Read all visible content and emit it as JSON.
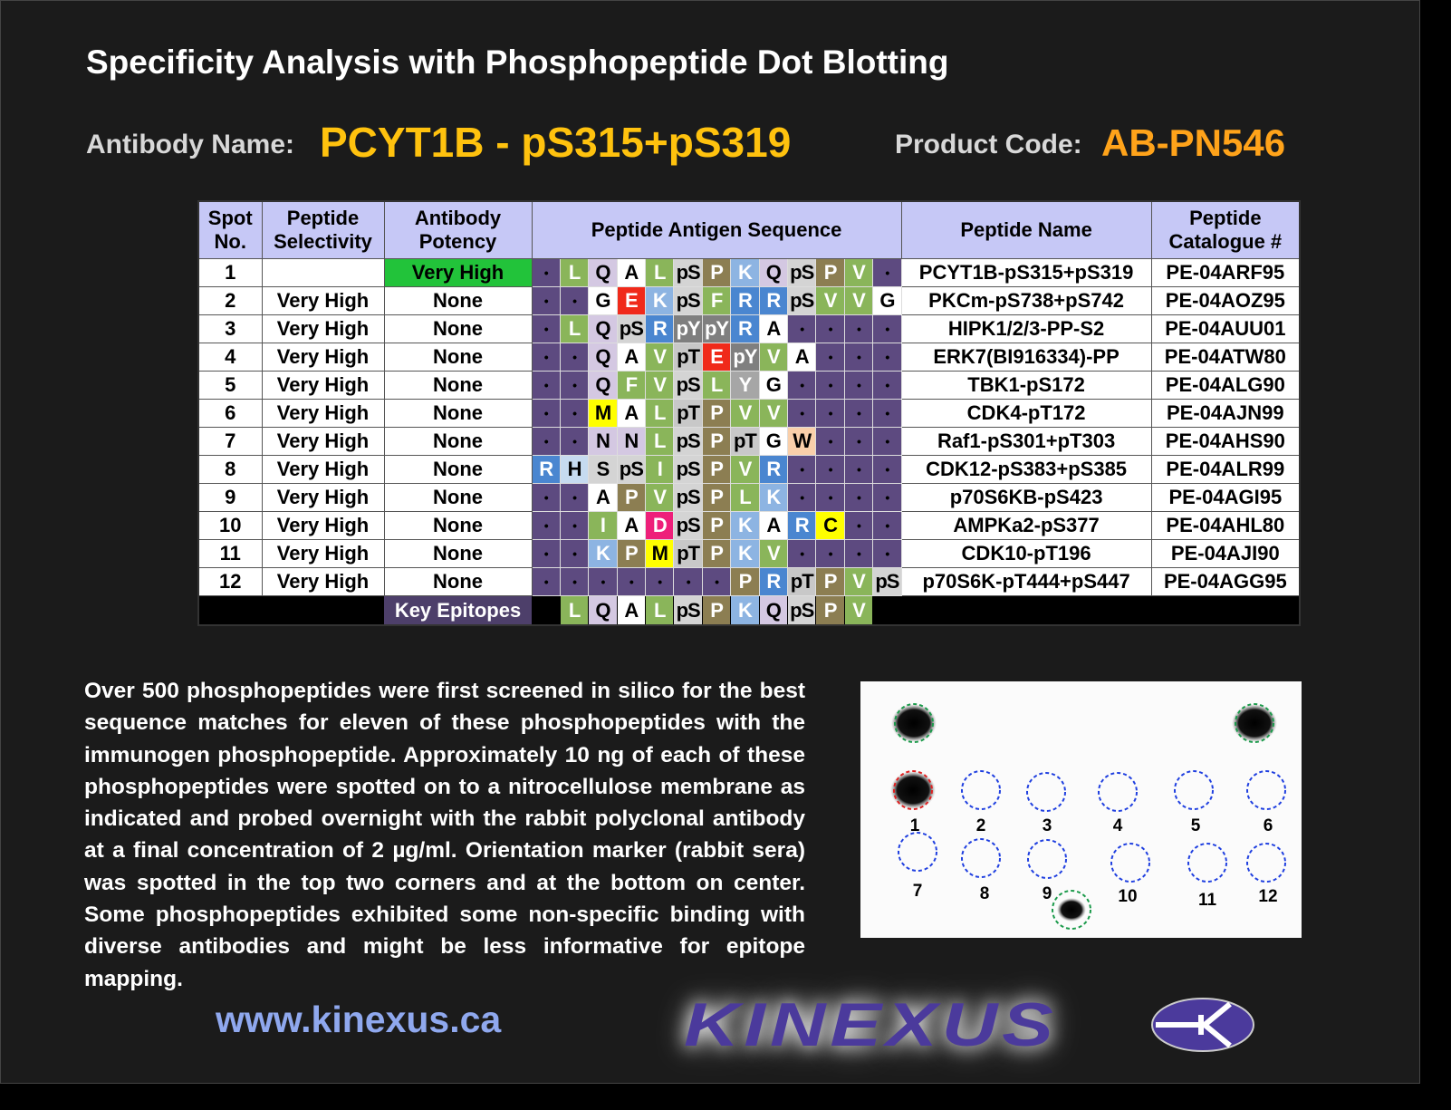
{
  "title": "Specificity Analysis with Phosphopeptide Dot Blotting",
  "antibody_label": "Antibody Name:",
  "antibody_name": "PCYT1B - pS315+pS319",
  "product_label": "Product Code:",
  "product_code": "AB-PN546",
  "table": {
    "headers": [
      "Spot No.",
      "Peptide Selectivity",
      "Antibody Potency",
      "Peptide Antigen Sequence",
      "Peptide Name",
      "Peptide Catalogue #"
    ],
    "rows": [
      {
        "spot": "1",
        "selectivity": "",
        "potency": "Very High",
        "seq": [
          "•",
          "L",
          "Q",
          "A",
          "L",
          "pS",
          "P",
          "K",
          "Q",
          "pS",
          "P",
          "V",
          "•"
        ],
        "name": "PCYT1B-pS315+pS319",
        "cat": "PE-04ARF95"
      },
      {
        "spot": "2",
        "selectivity": "Very High",
        "potency": "None",
        "seq": [
          "•",
          "•",
          "G",
          "E",
          "K",
          "pS",
          "F",
          "R",
          "R",
          "pS",
          "V",
          "V",
          "G"
        ],
        "name": "PKCm-pS738+pS742",
        "cat": "PE-04AOZ95"
      },
      {
        "spot": "3",
        "selectivity": "Very High",
        "potency": "None",
        "seq": [
          "•",
          "L",
          "Q",
          "pS",
          "R",
          "pY",
          "pY",
          "R",
          "A",
          "•",
          "•",
          "•",
          "•"
        ],
        "name": "HIPK1/2/3-PP-S2",
        "cat": "PE-04AUU01"
      },
      {
        "spot": "4",
        "selectivity": "Very High",
        "potency": "None",
        "seq": [
          "•",
          "•",
          "Q",
          "A",
          "V",
          "pT",
          "E",
          "pY",
          "V",
          "A",
          "•",
          "•",
          "•"
        ],
        "name": "ERK7(BI916334)-PP",
        "cat": "PE-04ATW80"
      },
      {
        "spot": "5",
        "selectivity": "Very High",
        "potency": "None",
        "seq": [
          "•",
          "•",
          "Q",
          "F",
          "V",
          "pS",
          "L",
          "Y",
          "G",
          "•",
          "•",
          "•",
          "•"
        ],
        "name": "TBK1-pS172",
        "cat": "PE-04ALG90"
      },
      {
        "spot": "6",
        "selectivity": "Very High",
        "potency": "None",
        "seq": [
          "•",
          "•",
          "M",
          "A",
          "L",
          "pT",
          "P",
          "V",
          "V",
          "•",
          "•",
          "•",
          "•"
        ],
        "name": "CDK4-pT172",
        "cat": "PE-04AJN99"
      },
      {
        "spot": "7",
        "selectivity": "Very High",
        "potency": "None",
        "seq": [
          "•",
          "•",
          "N",
          "N",
          "L",
          "pS",
          "P",
          "pT",
          "G",
          "W",
          "•",
          "•",
          "•"
        ],
        "name": "Raf1-pS301+pT303",
        "cat": "PE-04AHS90"
      },
      {
        "spot": "8",
        "selectivity": "Very High",
        "potency": "None",
        "seq": [
          "R",
          "H",
          "S",
          "pS",
          "I",
          "pS",
          "P",
          "V",
          "R",
          "•",
          "•",
          "•",
          "•"
        ],
        "name": "CDK12-pS383+pS385",
        "cat": "PE-04ALR99"
      },
      {
        "spot": "9",
        "selectivity": "Very High",
        "potency": "None",
        "seq": [
          "•",
          "•",
          "A",
          "P",
          "V",
          "pS",
          "P",
          "L",
          "K",
          "•",
          "•",
          "•",
          "•"
        ],
        "name": "p70S6KB-pS423",
        "cat": "PE-04AGI95"
      },
      {
        "spot": "10",
        "selectivity": "Very High",
        "potency": "None",
        "seq": [
          "•",
          "•",
          "I",
          "A",
          "D",
          "pS",
          "P",
          "K",
          "A",
          "R",
          "C",
          "•",
          "•"
        ],
        "name": "AMPKa2-pS377",
        "cat": "PE-04AHL80"
      },
      {
        "spot": "11",
        "selectivity": "Very High",
        "potency": "None",
        "seq": [
          "•",
          "•",
          "K",
          "P",
          "M",
          "pT",
          "P",
          "K",
          "V",
          "•",
          "•",
          "•",
          "•"
        ],
        "name": "CDK10-pT196",
        "cat": "PE-04AJI90"
      },
      {
        "spot": "12",
        "selectivity": "Very High",
        "potency": "None",
        "seq": [
          "•",
          "•",
          "•",
          "•",
          "•",
          "•",
          "•",
          "P",
          "R",
          "pT",
          "P",
          "V",
          "pS"
        ],
        "name": "p70S6K-pT444+pS447",
        "cat": "PE-04AGG95"
      }
    ],
    "key_label": "Key Epitopes",
    "key_seq": [
      "",
      "L",
      "Q",
      "A",
      "L",
      "pS",
      "P",
      "K",
      "Q",
      "pS",
      "P",
      "V",
      ""
    ]
  },
  "residue_colors": {
    "•": [
      "#5d4a80",
      "#000"
    ],
    "L": [
      "#8ab55a",
      "#fff"
    ],
    "V": [
      "#8ab55a",
      "#fff"
    ],
    "I": [
      "#8ab55a",
      "#fff"
    ],
    "F": [
      "#8ab55a",
      "#fff"
    ],
    "Q": [
      "#d4c8e2",
      "#000"
    ],
    "N": [
      "#d4c8e2",
      "#000"
    ],
    "A": [
      "#ffffff",
      "#000"
    ],
    "G": [
      "#ffffff",
      "#000"
    ],
    "pS": [
      "#d4d4d4",
      "#000"
    ],
    "pT": [
      "#c8c8c8",
      "#000"
    ],
    "S": [
      "#d4d4d4",
      "#000"
    ],
    "P": [
      "#8c7e52",
      "#fff"
    ],
    "K": [
      "#8db4e2",
      "#fff"
    ],
    "R": [
      "#4a86d0",
      "#fff"
    ],
    "H": [
      "#c6dbf0",
      "#000"
    ],
    "E": [
      "#f02a1a",
      "#fff"
    ],
    "D": [
      "#ee1f7a",
      "#fff"
    ],
    "pY": [
      "#7f7f7f",
      "#fff"
    ],
    "Y": [
      "#a6a6a6",
      "#fff"
    ],
    "M": [
      "#ffff00",
      "#000"
    ],
    "C": [
      "#ffff00",
      "#000"
    ],
    "W": [
      "#f9cfaa",
      "#000"
    ],
    "": [
      "#000000",
      "#000"
    ]
  },
  "description": "Over 500 phosphopeptides were first screened in silico for the best sequence matches for eleven of these phosphopeptides with the immunogen phosphopeptide.  Approximately 10 ng of each of these phosphopeptides were spotted on to a nitrocellulose membrane as indicated and probed overnight with the rabbit polyclonal antibody at a final concentration of 2 µg/ml. Orientation marker (rabbit sera) was spotted in the top two corners and at the bottom on center. Some phosphopeptides exhibited some non-specific binding with diverse antibodies and might be less informative for epitope mapping.",
  "blot": {
    "spot_labels": [
      "1",
      "2",
      "3",
      "4",
      "5",
      "6",
      "7",
      "8",
      "9",
      "10",
      "11",
      "12"
    ]
  },
  "url": "www.kinexus.ca",
  "logo_text": "KINEXUS"
}
